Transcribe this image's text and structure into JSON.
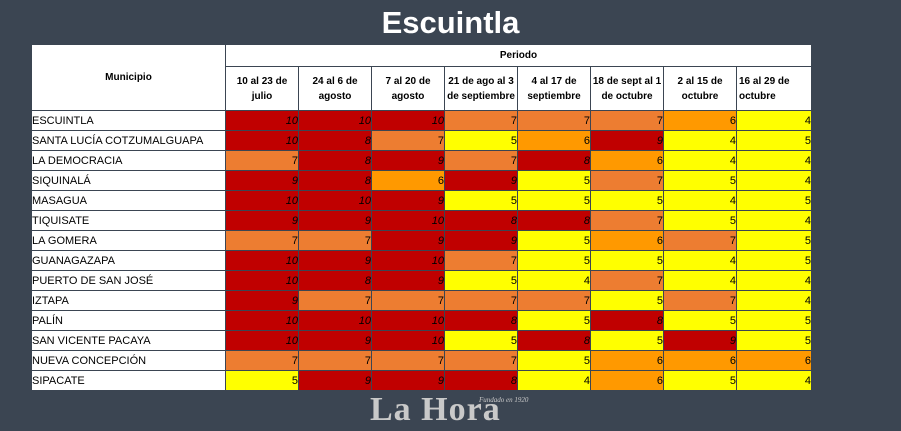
{
  "title": "Escuintla",
  "headers": {
    "municipio": "Municipio",
    "periodo": "Periodo",
    "periods": [
      "10 al 23 de julio",
      "24 al 6 de agosto",
      "7 al 20 de agosto",
      "21 de ago al 3 de septiembre",
      "4 al 17 de septiembre",
      "18 de sept al 1 de octubre",
      "2 al 15 de octubre",
      "16 al 29 de octubre"
    ]
  },
  "colors": {
    "4": "#ffff00",
    "5": "#ffff00",
    "6": "#ff9900",
    "7": "#ed7d31",
    "8": "#c00000",
    "9": "#c00000",
    "10": "#c00000"
  },
  "rows": [
    {
      "name": "ESCUINTLA",
      "values": [
        10,
        10,
        10,
        7,
        7,
        7,
        6,
        4
      ]
    },
    {
      "name": "SANTA LUCÍA COTZUMALGUAPA",
      "values": [
        10,
        8,
        7,
        5,
        6,
        9,
        4,
        5
      ]
    },
    {
      "name": "LA DEMOCRACIA",
      "values": [
        7,
        8,
        9,
        7,
        8,
        6,
        4,
        4
      ]
    },
    {
      "name": "SIQUINALÁ",
      "values": [
        9,
        8,
        6,
        9,
        5,
        7,
        5,
        4
      ]
    },
    {
      "name": "MASAGUA",
      "values": [
        10,
        10,
        9,
        5,
        5,
        5,
        4,
        5
      ]
    },
    {
      "name": "TIQUISATE",
      "values": [
        9,
        9,
        10,
        8,
        8,
        7,
        5,
        4
      ]
    },
    {
      "name": "LA GOMERA",
      "values": [
        7,
        7,
        9,
        9,
        5,
        6,
        7,
        5
      ]
    },
    {
      "name": "GUANAGAZAPA",
      "values": [
        10,
        9,
        10,
        7,
        5,
        5,
        4,
        5
      ]
    },
    {
      "name": "PUERTO DE SAN JOSÉ",
      "values": [
        10,
        8,
        9,
        5,
        4,
        7,
        4,
        4
      ]
    },
    {
      "name": "IZTAPA",
      "values": [
        9,
        7,
        7,
        7,
        7,
        5,
        7,
        4
      ]
    },
    {
      "name": "PALÍN",
      "values": [
        10,
        10,
        10,
        8,
        5,
        8,
        5,
        5
      ]
    },
    {
      "name": "SAN VICENTE PACAYA",
      "values": [
        10,
        9,
        10,
        5,
        8,
        5,
        9,
        5
      ]
    },
    {
      "name": "NUEVA CONCEPCIÓN",
      "values": [
        7,
        7,
        7,
        7,
        5,
        6,
        6,
        6
      ]
    },
    {
      "name": "SIPACATE",
      "values": [
        5,
        9,
        9,
        8,
        4,
        6,
        5,
        4
      ]
    }
  ],
  "logo": {
    "text": "La Hora",
    "subtitle": "Fundado en 1920"
  }
}
